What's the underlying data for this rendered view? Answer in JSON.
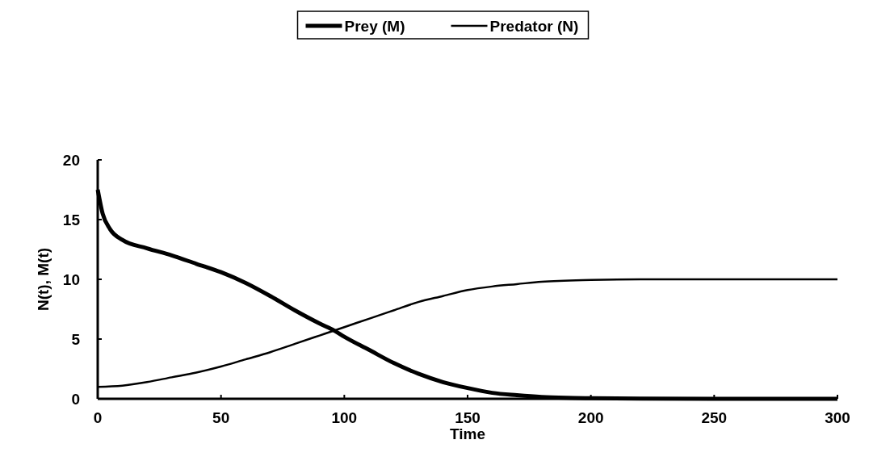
{
  "chart_data": {
    "type": "line",
    "xlabel": "Time",
    "ylabel": "N(t), M(t)",
    "xlim": [
      0,
      300
    ],
    "ylim": [
      0,
      20
    ],
    "xticks": [
      0,
      50,
      100,
      150,
      200,
      250,
      300
    ],
    "yticks": [
      0,
      5,
      10,
      15,
      20
    ],
    "grid": false,
    "legend": "top",
    "marker": "none",
    "line_style": "solid",
    "series": [
      {
        "name": "Prey (M)",
        "color": "#000000",
        "x": [
          0,
          2,
          5,
          10,
          20,
          30,
          40,
          50,
          60,
          70,
          80,
          90,
          96,
          100,
          110,
          120,
          130,
          140,
          150,
          160,
          170,
          180,
          190,
          200,
          220,
          250,
          300
        ],
        "values": [
          17.5,
          15.5,
          14.2,
          13.3,
          12.6,
          12.0,
          11.3,
          10.6,
          9.7,
          8.6,
          7.4,
          6.3,
          5.7,
          5.2,
          4.1,
          3.0,
          2.1,
          1.4,
          0.9,
          0.5,
          0.3,
          0.15,
          0.08,
          0.05,
          0.02,
          0,
          0
        ]
      },
      {
        "name": "Predator (N)",
        "color": "#000000",
        "x": [
          0,
          10,
          20,
          30,
          40,
          50,
          60,
          70,
          80,
          90,
          100,
          110,
          120,
          130,
          140,
          150,
          160,
          170,
          180,
          200,
          220,
          250,
          300
        ],
        "values": [
          1,
          1.1,
          1.4,
          1.8,
          2.2,
          2.7,
          3.3,
          3.9,
          4.6,
          5.3,
          6.0,
          6.7,
          7.4,
          8.1,
          8.6,
          9.1,
          9.4,
          9.6,
          9.8,
          9.95,
          10,
          10,
          10
        ]
      }
    ]
  }
}
